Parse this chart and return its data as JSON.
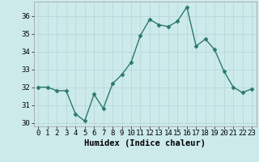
{
  "x": [
    0,
    1,
    2,
    3,
    4,
    5,
    6,
    7,
    8,
    9,
    10,
    11,
    12,
    13,
    14,
    15,
    16,
    17,
    18,
    19,
    20,
    21,
    22,
    23
  ],
  "y": [
    32.0,
    32.0,
    31.8,
    31.8,
    30.5,
    30.1,
    31.6,
    30.8,
    32.2,
    32.7,
    33.4,
    34.9,
    35.8,
    35.5,
    35.4,
    35.7,
    36.5,
    34.3,
    34.7,
    34.1,
    32.9,
    32.0,
    31.7,
    31.9
  ],
  "line_color": "#2a7a6a",
  "marker": "D",
  "marker_size": 2.5,
  "bg_color": "#cdeaeb",
  "grid_color": "#b8d8d8",
  "xlabel": "Humidex (Indice chaleur)",
  "ylim": [
    29.8,
    36.8
  ],
  "xlim": [
    -0.5,
    23.5
  ],
  "yticks": [
    30,
    31,
    32,
    33,
    34,
    35,
    36
  ],
  "xticks": [
    0,
    1,
    2,
    3,
    4,
    5,
    6,
    7,
    8,
    9,
    10,
    11,
    12,
    13,
    14,
    15,
    16,
    17,
    18,
    19,
    20,
    21,
    22,
    23
  ],
  "xlabel_fontsize": 7.5,
  "tick_fontsize": 6.5,
  "line_width": 1.0
}
